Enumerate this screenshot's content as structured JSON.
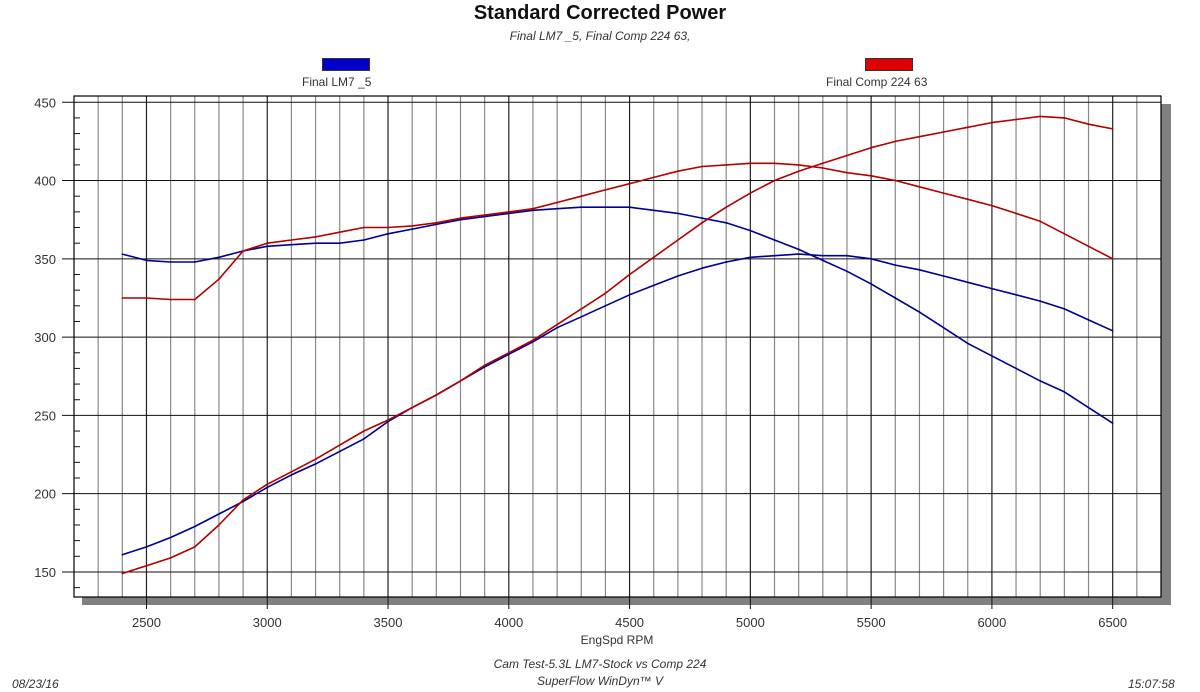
{
  "chart_data": {
    "type": "line",
    "title": "Standard Corrected Power",
    "subtitle": "Final LM7 _5, Final Comp 224 63,",
    "xlabel": "EngSpd RPM",
    "ylabel": "",
    "xlim": [
      2200,
      6700
    ],
    "ylim": [
      134,
      454
    ],
    "grid": true,
    "legend_placement": "top",
    "x_ticks": [
      2500,
      3000,
      3500,
      4000,
      4500,
      5000,
      5500,
      6000,
      6500
    ],
    "y_ticks": [
      150,
      200,
      250,
      300,
      350,
      400,
      450
    ],
    "x": [
      2400,
      2500,
      2600,
      2700,
      2800,
      2900,
      3000,
      3100,
      3200,
      3300,
      3400,
      3500,
      3600,
      3700,
      3800,
      3900,
      4000,
      4100,
      4200,
      4300,
      4400,
      4500,
      4600,
      4700,
      4800,
      4900,
      5000,
      5100,
      5200,
      5300,
      5400,
      5500,
      5600,
      5700,
      5800,
      5900,
      6000,
      6100,
      6200,
      6300,
      6400,
      6500
    ],
    "series": [
      {
        "name": "Final LM7 _5",
        "kind": "torque",
        "color": "#00008b",
        "values": [
          353,
          349,
          348,
          348,
          351,
          355,
          358,
          359,
          360,
          360,
          362,
          366,
          369,
          372,
          375,
          377,
          379,
          381,
          382,
          383,
          383,
          383,
          381,
          379,
          376,
          373,
          368,
          362,
          356,
          349,
          342,
          334,
          325,
          316,
          306,
          296,
          288,
          280,
          272,
          265,
          255,
          245
        ]
      },
      {
        "name": "Final LM7 _5",
        "kind": "power",
        "color": "#00008b",
        "values": [
          161,
          166,
          172,
          179,
          187,
          195,
          204,
          212,
          219,
          227,
          235,
          246,
          255,
          263,
          272,
          281,
          289,
          297,
          306,
          313,
          320,
          327,
          333,
          339,
          344,
          348,
          351,
          352,
          353,
          352,
          352,
          350,
          346,
          343,
          339,
          335,
          331,
          327,
          323,
          318,
          311,
          304
        ]
      },
      {
        "name": "Final Comp 224 63",
        "kind": "torque",
        "color": "#b00000",
        "values": [
          325,
          325,
          324,
          324,
          337,
          355,
          360,
          362,
          364,
          367,
          370,
          370,
          371,
          373,
          376,
          378,
          380,
          382,
          386,
          390,
          394,
          398,
          402,
          406,
          409,
          410,
          411,
          411,
          410,
          408,
          405,
          403,
          400,
          396,
          392,
          388,
          384,
          379,
          374,
          366,
          358,
          350
        ]
      },
      {
        "name": "Final Comp 224 63",
        "kind": "power",
        "color": "#b00000",
        "values": [
          149,
          154,
          159,
          166,
          180,
          196,
          206,
          214,
          222,
          231,
          240,
          247,
          255,
          263,
          272,
          282,
          290,
          298,
          308,
          318,
          328,
          340,
          351,
          362,
          373,
          383,
          392,
          400,
          406,
          411,
          416,
          421,
          425,
          428,
          431,
          434,
          437,
          439,
          441,
          440,
          436,
          433
        ]
      }
    ]
  },
  "legend": [
    {
      "label": "Final LM7 _5",
      "color": "#0000cc"
    },
    {
      "label": "Final Comp 224 63",
      "color": "#dd0000"
    }
  ],
  "footer": {
    "date": "08/23/16",
    "test_name": "Cam Test-5.3L LM7-Stock vs Comp 224",
    "software": "SuperFlow WinDyn™ V",
    "time": "15:07:58"
  }
}
